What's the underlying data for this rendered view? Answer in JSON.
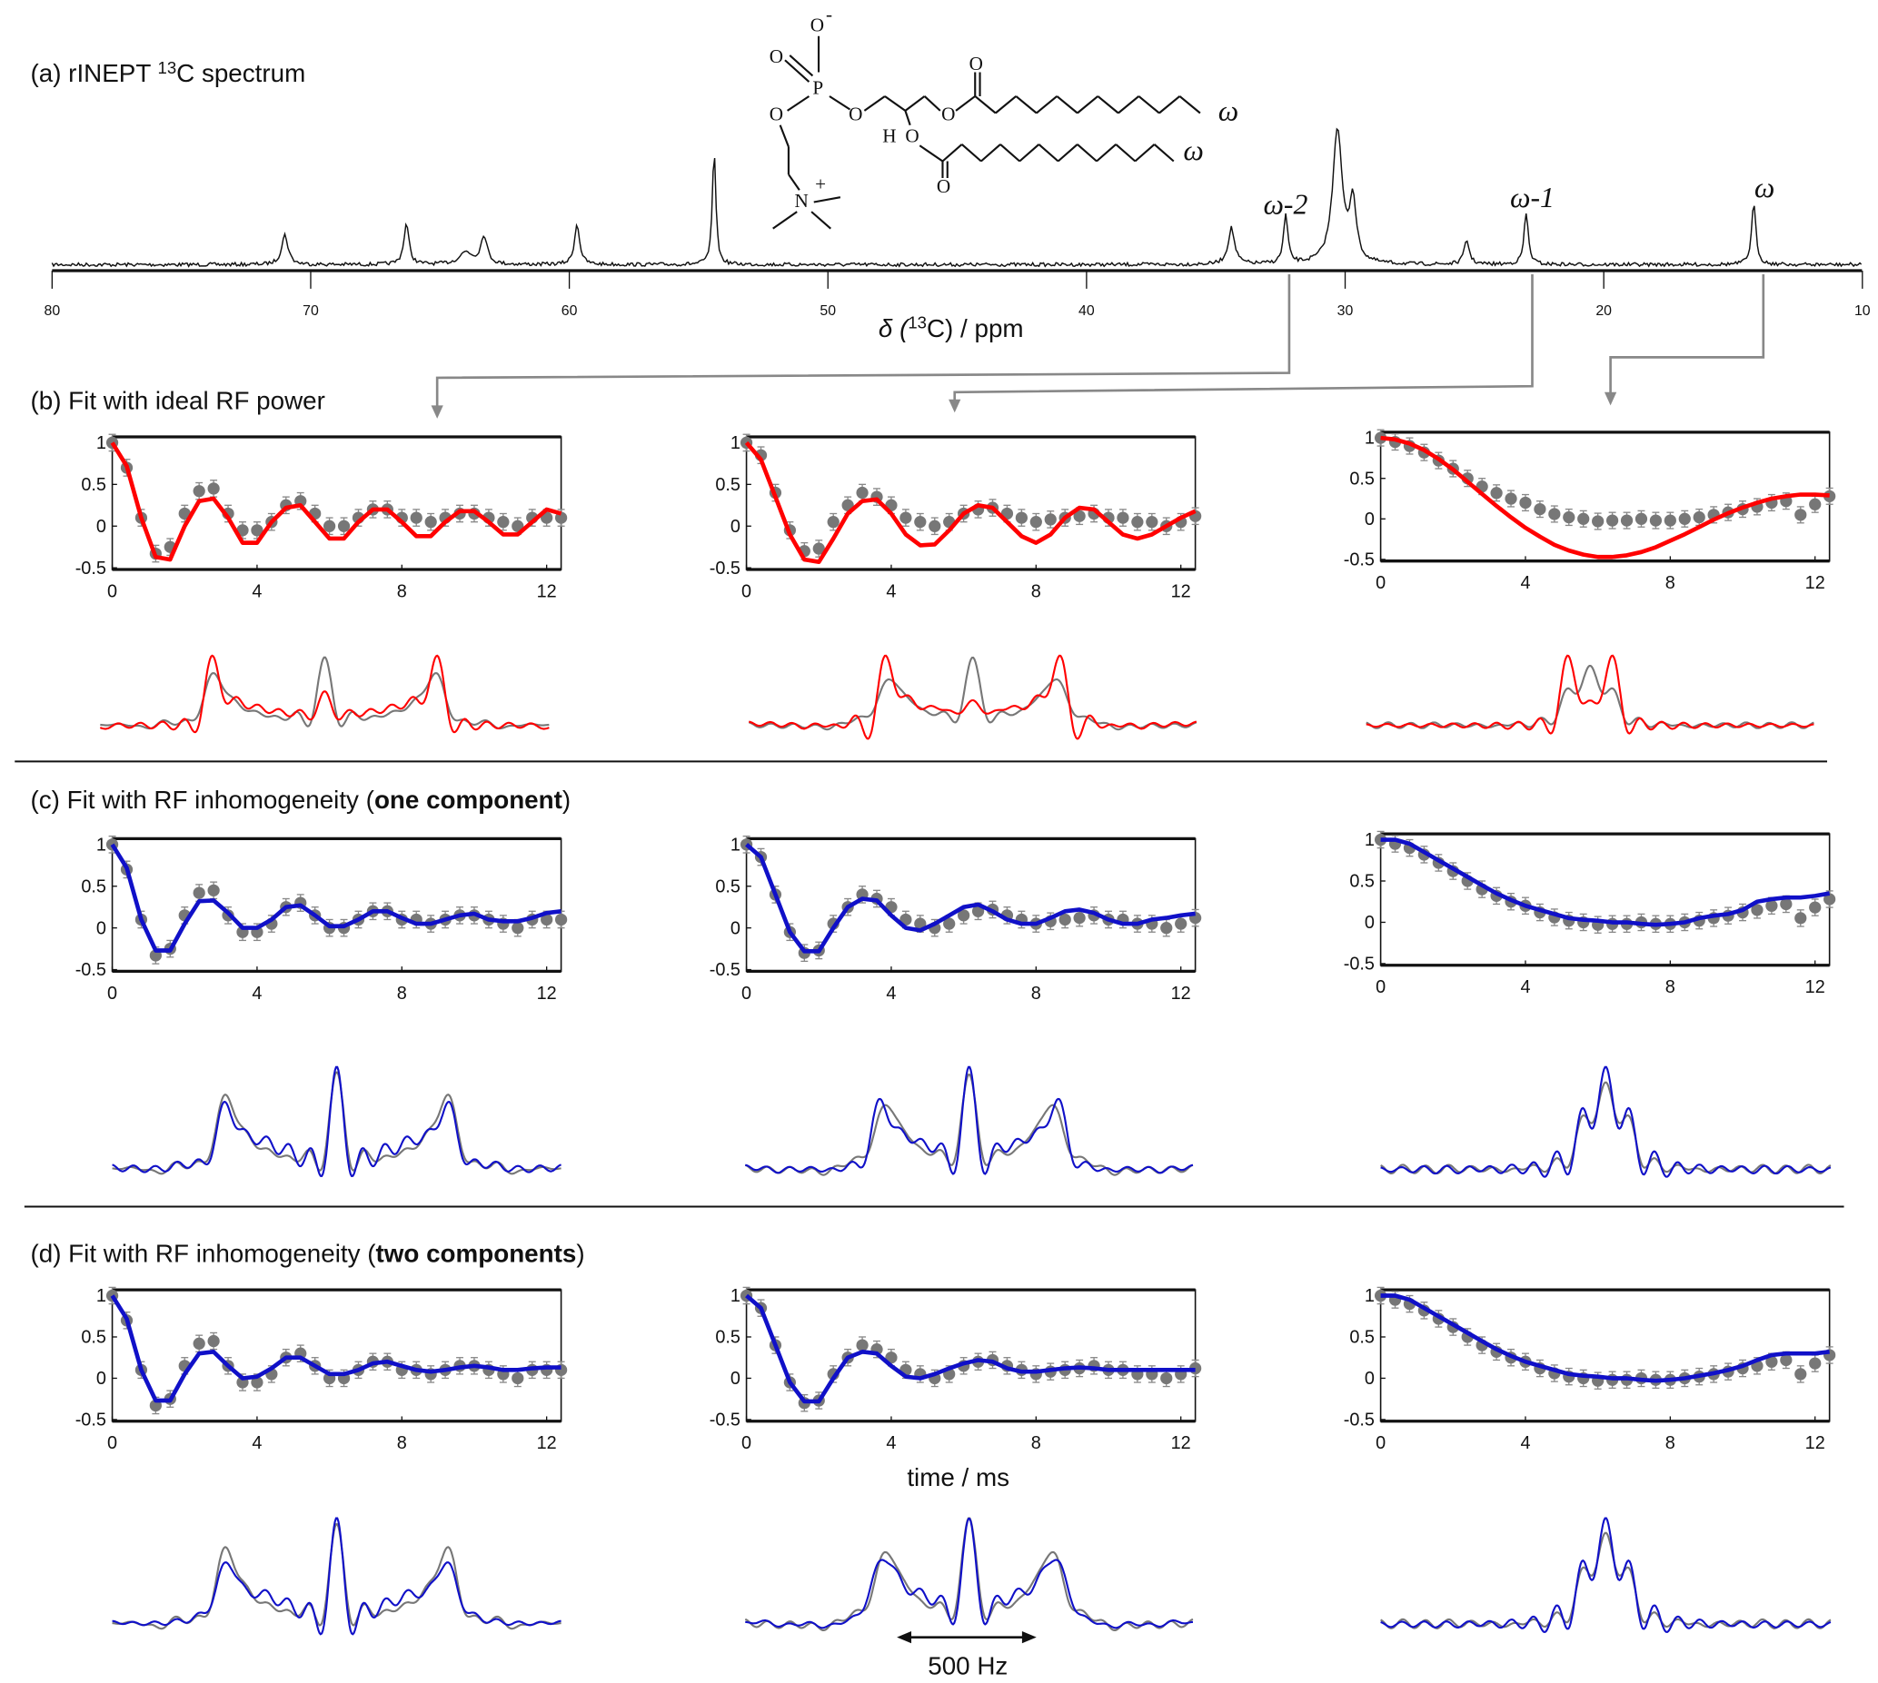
{
  "titles": {
    "a": {
      "prefix": "(a) rINEPT ",
      "sup": "13",
      "suffix": "C spectrum"
    },
    "b": {
      "text": "(b) Fit with ideal RF power"
    },
    "c": {
      "prefix": "(c) Fit with RF inhomogeneity (",
      "bold": "one component",
      "suffix": ")"
    },
    "d": {
      "prefix": "(d) Fit with RF inhomogeneity (",
      "bold": "two components",
      "suffix": ")"
    }
  },
  "molecule": {
    "o": "O",
    "p": "P",
    "n": "N",
    "h": "H",
    "minus": "-",
    "plus": "+",
    "omega": "ω"
  },
  "peak_labels": {
    "omega2": "ω-2",
    "omega1": "ω-1",
    "omega": "ω"
  },
  "colors": {
    "ideal_fit": "#ff0000",
    "inhom_fit": "#1010c8",
    "experiment": "#777777",
    "axis": "#111111"
  },
  "scale_bar": {
    "label": "500 Hz",
    "value_hz": 500
  },
  "chart_data": [
    {
      "type": "line",
      "id": "spectrum",
      "title": "rINEPT 13C spectrum",
      "xlabel_prefix": "δ (",
      "xlabel_sup": "13",
      "xlabel_suffix": "C) / ppm",
      "xlim": [
        80,
        10
      ],
      "xticks": [
        "80",
        "70",
        "60",
        "50",
        "40",
        "30",
        "20",
        "10"
      ],
      "peaks": [
        {
          "ppm": 71.0,
          "intensity": 0.22,
          "width": 0.15
        },
        {
          "ppm": 66.3,
          "intensity": 0.3,
          "width": 0.12
        },
        {
          "ppm": 64.0,
          "intensity": 0.09,
          "width": 0.3
        },
        {
          "ppm": 63.3,
          "intensity": 0.21,
          "width": 0.15
        },
        {
          "ppm": 59.7,
          "intensity": 0.3,
          "width": 0.12
        },
        {
          "ppm": 54.4,
          "intensity": 0.85,
          "width": 0.08
        },
        {
          "ppm": 34.4,
          "intensity": 0.27,
          "width": 0.15
        },
        {
          "ppm": 32.3,
          "intensity": 0.36,
          "width": 0.1
        },
        {
          "ppm": 30.3,
          "intensity": 1.0,
          "width": 0.22
        },
        {
          "ppm": 29.7,
          "intensity": 0.45,
          "width": 0.15
        },
        {
          "ppm": 25.3,
          "intensity": 0.18,
          "width": 0.12
        },
        {
          "ppm": 23.0,
          "intensity": 0.38,
          "width": 0.1
        },
        {
          "ppm": 14.2,
          "intensity": 0.45,
          "width": 0.1
        }
      ],
      "annotations": [
        {
          "label": "ω-2",
          "ppm": 32.3
        },
        {
          "label": "ω-1",
          "ppm": 23.0
        },
        {
          "label": "ω",
          "ppm": 14.2
        }
      ]
    },
    {
      "type": "scatter",
      "id": "experimental_decays",
      "xlabel": "time / ms",
      "xlim": [
        0,
        12.4
      ],
      "ylim": [
        -0.5,
        1
      ],
      "xticks": [
        "0",
        "4",
        "8",
        "12"
      ],
      "yticks": [
        "1",
        "0.5",
        "0",
        "-0.5"
      ],
      "dt_ms": 0.4,
      "error": 0.1,
      "series": [
        {
          "name": "ω-2",
          "values": [
            1,
            0.7,
            0.1,
            -0.33,
            -0.25,
            0.15,
            0.42,
            0.45,
            0.15,
            -0.05,
            -0.05,
            0.05,
            0.25,
            0.3,
            0.15,
            0.0,
            0.0,
            0.1,
            0.2,
            0.2,
            0.1,
            0.1,
            0.05,
            0.1,
            0.15,
            0.15,
            0.1,
            0.05,
            0.0,
            0.1,
            0.1,
            0.1
          ]
        },
        {
          "name": "ω-1",
          "values": [
            1,
            0.85,
            0.4,
            -0.05,
            -0.3,
            -0.27,
            0.05,
            0.25,
            0.4,
            0.35,
            0.25,
            0.1,
            0.05,
            0.0,
            0.05,
            0.15,
            0.2,
            0.22,
            0.15,
            0.1,
            0.05,
            0.08,
            0.1,
            0.12,
            0.15,
            0.1,
            0.1,
            0.05,
            0.05,
            0.0,
            0.05,
            0.12
          ]
        },
        {
          "name": "ω",
          "values": [
            1,
            0.95,
            0.9,
            0.82,
            0.72,
            0.62,
            0.5,
            0.4,
            0.32,
            0.25,
            0.2,
            0.12,
            0.06,
            0.02,
            0.0,
            -0.03,
            -0.02,
            -0.02,
            0.0,
            -0.02,
            -0.02,
            0.0,
            0.02,
            0.05,
            0.08,
            0.12,
            0.15,
            0.2,
            0.22,
            0.05,
            0.18,
            0.28
          ]
        }
      ]
    },
    {
      "type": "line",
      "id": "fits",
      "xlim": [
        0,
        12.4
      ],
      "ylim": [
        -0.5,
        1
      ],
      "dt_ms": 0.4,
      "rows": [
        {
          "row": "b",
          "model": "ideal RF power",
          "color": "#ff0000",
          "series": [
            {
              "name": "ω-2",
              "values": [
                1,
                0.72,
                0.1,
                -0.37,
                -0.4,
                0.0,
                0.3,
                0.33,
                0.1,
                -0.2,
                -0.2,
                0.05,
                0.22,
                0.25,
                0.05,
                -0.15,
                -0.15,
                0.05,
                0.2,
                0.2,
                0.05,
                -0.12,
                -0.12,
                0.05,
                0.18,
                0.18,
                0.05,
                -0.1,
                -0.1,
                0.05,
                0.2,
                0.15
              ]
            },
            {
              "name": "ω-1",
              "values": [
                1,
                0.8,
                0.35,
                -0.1,
                -0.4,
                -0.43,
                -0.15,
                0.15,
                0.3,
                0.32,
                0.15,
                -0.1,
                -0.23,
                -0.22,
                -0.05,
                0.15,
                0.25,
                0.22,
                0.05,
                -0.12,
                -0.2,
                -0.1,
                0.1,
                0.22,
                0.2,
                0.05,
                -0.1,
                -0.15,
                -0.1,
                0.0,
                0.1,
                0.18
              ]
            },
            {
              "name": "ω",
              "values": [
                1,
                0.98,
                0.93,
                0.85,
                0.74,
                0.61,
                0.46,
                0.31,
                0.16,
                0.02,
                -0.11,
                -0.22,
                -0.32,
                -0.39,
                -0.44,
                -0.47,
                -0.47,
                -0.45,
                -0.41,
                -0.35,
                -0.27,
                -0.19,
                -0.1,
                -0.01,
                0.07,
                0.14,
                0.2,
                0.25,
                0.28,
                0.3,
                0.3,
                0.29
              ]
            }
          ]
        },
        {
          "row": "c",
          "model": "RF inhomogeneity, one component",
          "color": "#1010c8",
          "series": [
            {
              "name": "ω-2",
              "values": [
                1,
                0.72,
                0.1,
                -0.27,
                -0.27,
                0.05,
                0.32,
                0.33,
                0.18,
                0.0,
                0.0,
                0.1,
                0.25,
                0.27,
                0.15,
                0.02,
                0.02,
                0.1,
                0.2,
                0.2,
                0.12,
                0.05,
                0.05,
                0.1,
                0.15,
                0.17,
                0.1,
                0.08,
                0.08,
                0.12,
                0.18,
                0.2
              ]
            },
            {
              "name": "ω-1",
              "values": [
                1,
                0.85,
                0.4,
                -0.05,
                -0.28,
                -0.28,
                0.0,
                0.25,
                0.35,
                0.33,
                0.15,
                0.0,
                -0.03,
                0.05,
                0.15,
                0.25,
                0.28,
                0.2,
                0.1,
                0.05,
                0.05,
                0.12,
                0.2,
                0.22,
                0.18,
                0.1,
                0.05,
                0.05,
                0.1,
                0.12,
                0.15,
                0.17
              ]
            },
            {
              "name": "ω",
              "values": [
                1,
                1.0,
                0.95,
                0.85,
                0.75,
                0.65,
                0.55,
                0.45,
                0.35,
                0.27,
                0.2,
                0.15,
                0.1,
                0.05,
                0.03,
                0.02,
                0.0,
                0.0,
                -0.02,
                -0.03,
                -0.02,
                0.0,
                0.05,
                0.08,
                0.1,
                0.15,
                0.25,
                0.28,
                0.3,
                0.3,
                0.32,
                0.35
              ]
            }
          ]
        },
        {
          "row": "d",
          "model": "RF inhomogeneity, two components",
          "color": "#1010c8",
          "series": [
            {
              "name": "ω-2",
              "values": [
                1,
                0.72,
                0.1,
                -0.27,
                -0.27,
                0.05,
                0.3,
                0.32,
                0.15,
                0.0,
                0.02,
                0.12,
                0.25,
                0.25,
                0.15,
                0.05,
                0.05,
                0.1,
                0.18,
                0.2,
                0.15,
                0.1,
                0.08,
                0.1,
                0.13,
                0.15,
                0.13,
                0.1,
                0.1,
                0.12,
                0.13,
                0.13
              ]
            },
            {
              "name": "ω-1",
              "values": [
                1,
                0.85,
                0.4,
                -0.05,
                -0.28,
                -0.28,
                0.0,
                0.25,
                0.32,
                0.3,
                0.15,
                0.02,
                0.0,
                0.05,
                0.12,
                0.18,
                0.22,
                0.2,
                0.12,
                0.08,
                0.08,
                0.1,
                0.12,
                0.13,
                0.12,
                0.1,
                0.1,
                0.1,
                0.1,
                0.1,
                0.1,
                0.1
              ]
            },
            {
              "name": "ω",
              "values": [
                1,
                1.0,
                0.95,
                0.85,
                0.75,
                0.65,
                0.55,
                0.45,
                0.35,
                0.27,
                0.2,
                0.15,
                0.1,
                0.05,
                0.03,
                0.02,
                0.0,
                0.0,
                -0.02,
                -0.03,
                -0.02,
                0.0,
                0.03,
                0.06,
                0.1,
                0.15,
                0.22,
                0.28,
                0.3,
                0.3,
                0.3,
                0.32
              ]
            }
          ]
        }
      ]
    }
  ]
}
